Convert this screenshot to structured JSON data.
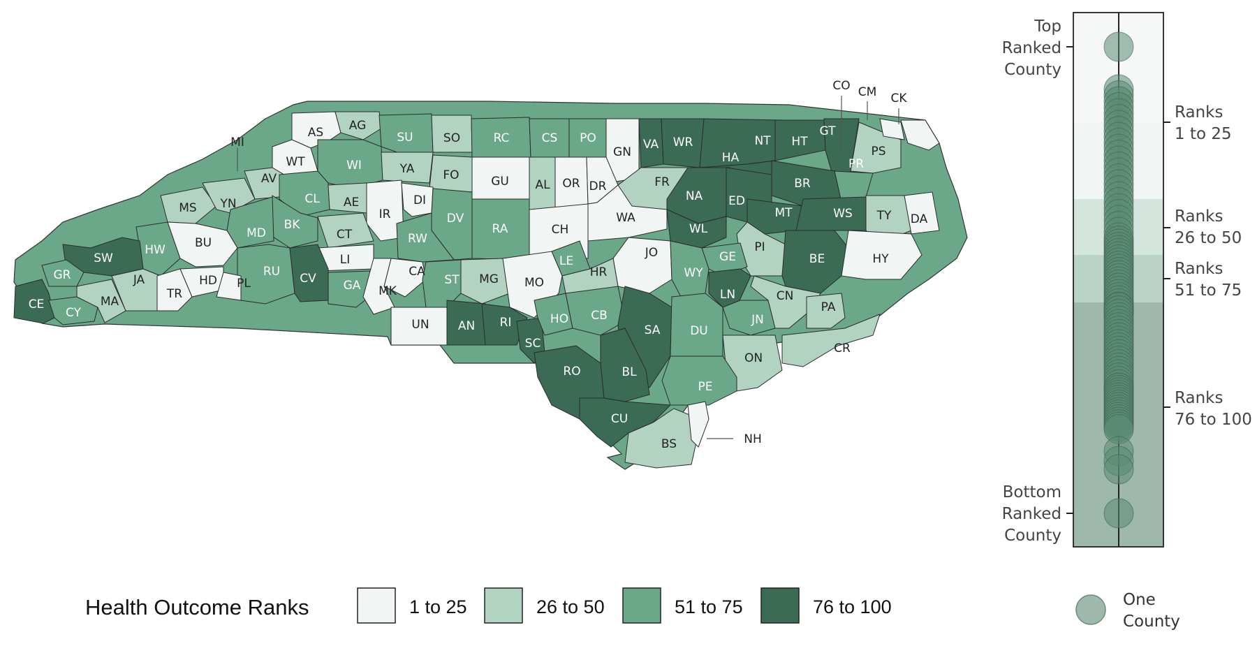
{
  "legend": {
    "title": "Health Outcome Ranks",
    "items": [
      {
        "label": "1 to 25",
        "color": "#f1f5f3"
      },
      {
        "label": "26 to 50",
        "color": "#b2d3c2"
      },
      {
        "label": "51 to 75",
        "color": "#6aa889"
      },
      {
        "label": "76 to 100",
        "color": "#3b6b55"
      }
    ]
  },
  "strip": {
    "top_label": [
      "Top",
      "Ranked",
      "County"
    ],
    "bottom_label": [
      "Bottom",
      "Ranked",
      "County"
    ],
    "rank_labels": [
      [
        "Ranks",
        "1 to 25"
      ],
      [
        "Ranks",
        "26 to 50"
      ],
      [
        "Ranks",
        "51 to 75"
      ],
      [
        "Ranks",
        "76 to 100"
      ]
    ],
    "dot_legend": [
      "One",
      "County"
    ],
    "dot_color": "#5a8a73"
  },
  "callouts": [
    "MI",
    "CO",
    "CM",
    "CK",
    "NH"
  ],
  "counties": [
    {
      "code": "AS",
      "tier": 1
    },
    {
      "code": "AG",
      "tier": 2
    },
    {
      "code": "SU",
      "tier": 3
    },
    {
      "code": "SO",
      "tier": 2
    },
    {
      "code": "RC",
      "tier": 3
    },
    {
      "code": "CS",
      "tier": 3
    },
    {
      "code": "PO",
      "tier": 3
    },
    {
      "code": "GN",
      "tier": 1
    },
    {
      "code": "VA",
      "tier": 4
    },
    {
      "code": "WR",
      "tier": 4
    },
    {
      "code": "NT",
      "tier": 4
    },
    {
      "code": "HT",
      "tier": 4
    },
    {
      "code": "GT",
      "tier": 4
    },
    {
      "code": "PS",
      "tier": 2
    },
    {
      "code": "WT",
      "tier": 1
    },
    {
      "code": "WI",
      "tier": 3
    },
    {
      "code": "YA",
      "tier": 2
    },
    {
      "code": "FO",
      "tier": 2
    },
    {
      "code": "GU",
      "tier": 1
    },
    {
      "code": "AL",
      "tier": 2
    },
    {
      "code": "OR",
      "tier": 1
    },
    {
      "code": "DR",
      "tier": 1
    },
    {
      "code": "HA",
      "tier": 4
    },
    {
      "code": "PR",
      "tier": 3
    },
    {
      "code": "AV",
      "tier": 2
    },
    {
      "code": "CL",
      "tier": 3
    },
    {
      "code": "AE",
      "tier": 2
    },
    {
      "code": "IR",
      "tier": 1
    },
    {
      "code": "DI",
      "tier": 1
    },
    {
      "code": "DV",
      "tier": 3
    },
    {
      "code": "RA",
      "tier": 3
    },
    {
      "code": "CH",
      "tier": 1
    },
    {
      "code": "WA",
      "tier": 1
    },
    {
      "code": "FR",
      "tier": 2
    },
    {
      "code": "NA",
      "tier": 4
    },
    {
      "code": "ED",
      "tier": 4
    },
    {
      "code": "BR",
      "tier": 4
    },
    {
      "code": "MT",
      "tier": 4
    },
    {
      "code": "WS",
      "tier": 4
    },
    {
      "code": "TY",
      "tier": 2
    },
    {
      "code": "DA",
      "tier": 1
    },
    {
      "code": "MS",
      "tier": 2
    },
    {
      "code": "YN",
      "tier": 2
    },
    {
      "code": "BK",
      "tier": 3
    },
    {
      "code": "MD",
      "tier": 3
    },
    {
      "code": "CT",
      "tier": 2
    },
    {
      "code": "RW",
      "tier": 3
    },
    {
      "code": "WL",
      "tier": 4
    },
    {
      "code": "PI",
      "tier": 2
    },
    {
      "code": "BE",
      "tier": 4
    },
    {
      "code": "HY",
      "tier": 1
    },
    {
      "code": "HW",
      "tier": 3
    },
    {
      "code": "BU",
      "tier": 1
    },
    {
      "code": "LI",
      "tier": 1
    },
    {
      "code": "JO",
      "tier": 1
    },
    {
      "code": "LE",
      "tier": 3
    },
    {
      "code": "GE",
      "tier": 3
    },
    {
      "code": "SW",
      "tier": 4
    },
    {
      "code": "GR",
      "tier": 3
    },
    {
      "code": "JA",
      "tier": 2
    },
    {
      "code": "RU",
      "tier": 3
    },
    {
      "code": "CV",
      "tier": 4
    },
    {
      "code": "CA",
      "tier": 1
    },
    {
      "code": "MG",
      "tier": 2
    },
    {
      "code": "MO",
      "tier": 1
    },
    {
      "code": "HR",
      "tier": 2
    },
    {
      "code": "WY",
      "tier": 3
    },
    {
      "code": "CE",
      "tier": 4
    },
    {
      "code": "CY",
      "tier": 3
    },
    {
      "code": "MA",
      "tier": 2
    },
    {
      "code": "TR",
      "tier": 1
    },
    {
      "code": "HD",
      "tier": 1
    },
    {
      "code": "PL",
      "tier": 1
    },
    {
      "code": "GA",
      "tier": 3
    },
    {
      "code": "MK",
      "tier": 1
    },
    {
      "code": "ST",
      "tier": 3
    },
    {
      "code": "UN",
      "tier": 1
    },
    {
      "code": "AN",
      "tier": 4
    },
    {
      "code": "RI",
      "tier": 4
    },
    {
      "code": "SC",
      "tier": 4
    },
    {
      "code": "HO",
      "tier": 3
    },
    {
      "code": "CB",
      "tier": 3
    },
    {
      "code": "SA",
      "tier": 4
    },
    {
      "code": "DU",
      "tier": 3
    },
    {
      "code": "LN",
      "tier": 4
    },
    {
      "code": "JN",
      "tier": 3
    },
    {
      "code": "CN",
      "tier": 2
    },
    {
      "code": "PA",
      "tier": 2
    },
    {
      "code": "ON",
      "tier": 2
    },
    {
      "code": "CR",
      "tier": 2
    },
    {
      "code": "RO",
      "tier": 4
    },
    {
      "code": "BL",
      "tier": 4
    },
    {
      "code": "PE",
      "tier": 3
    },
    {
      "code": "CU",
      "tier": 4
    },
    {
      "code": "BS",
      "tier": 2
    }
  ]
}
